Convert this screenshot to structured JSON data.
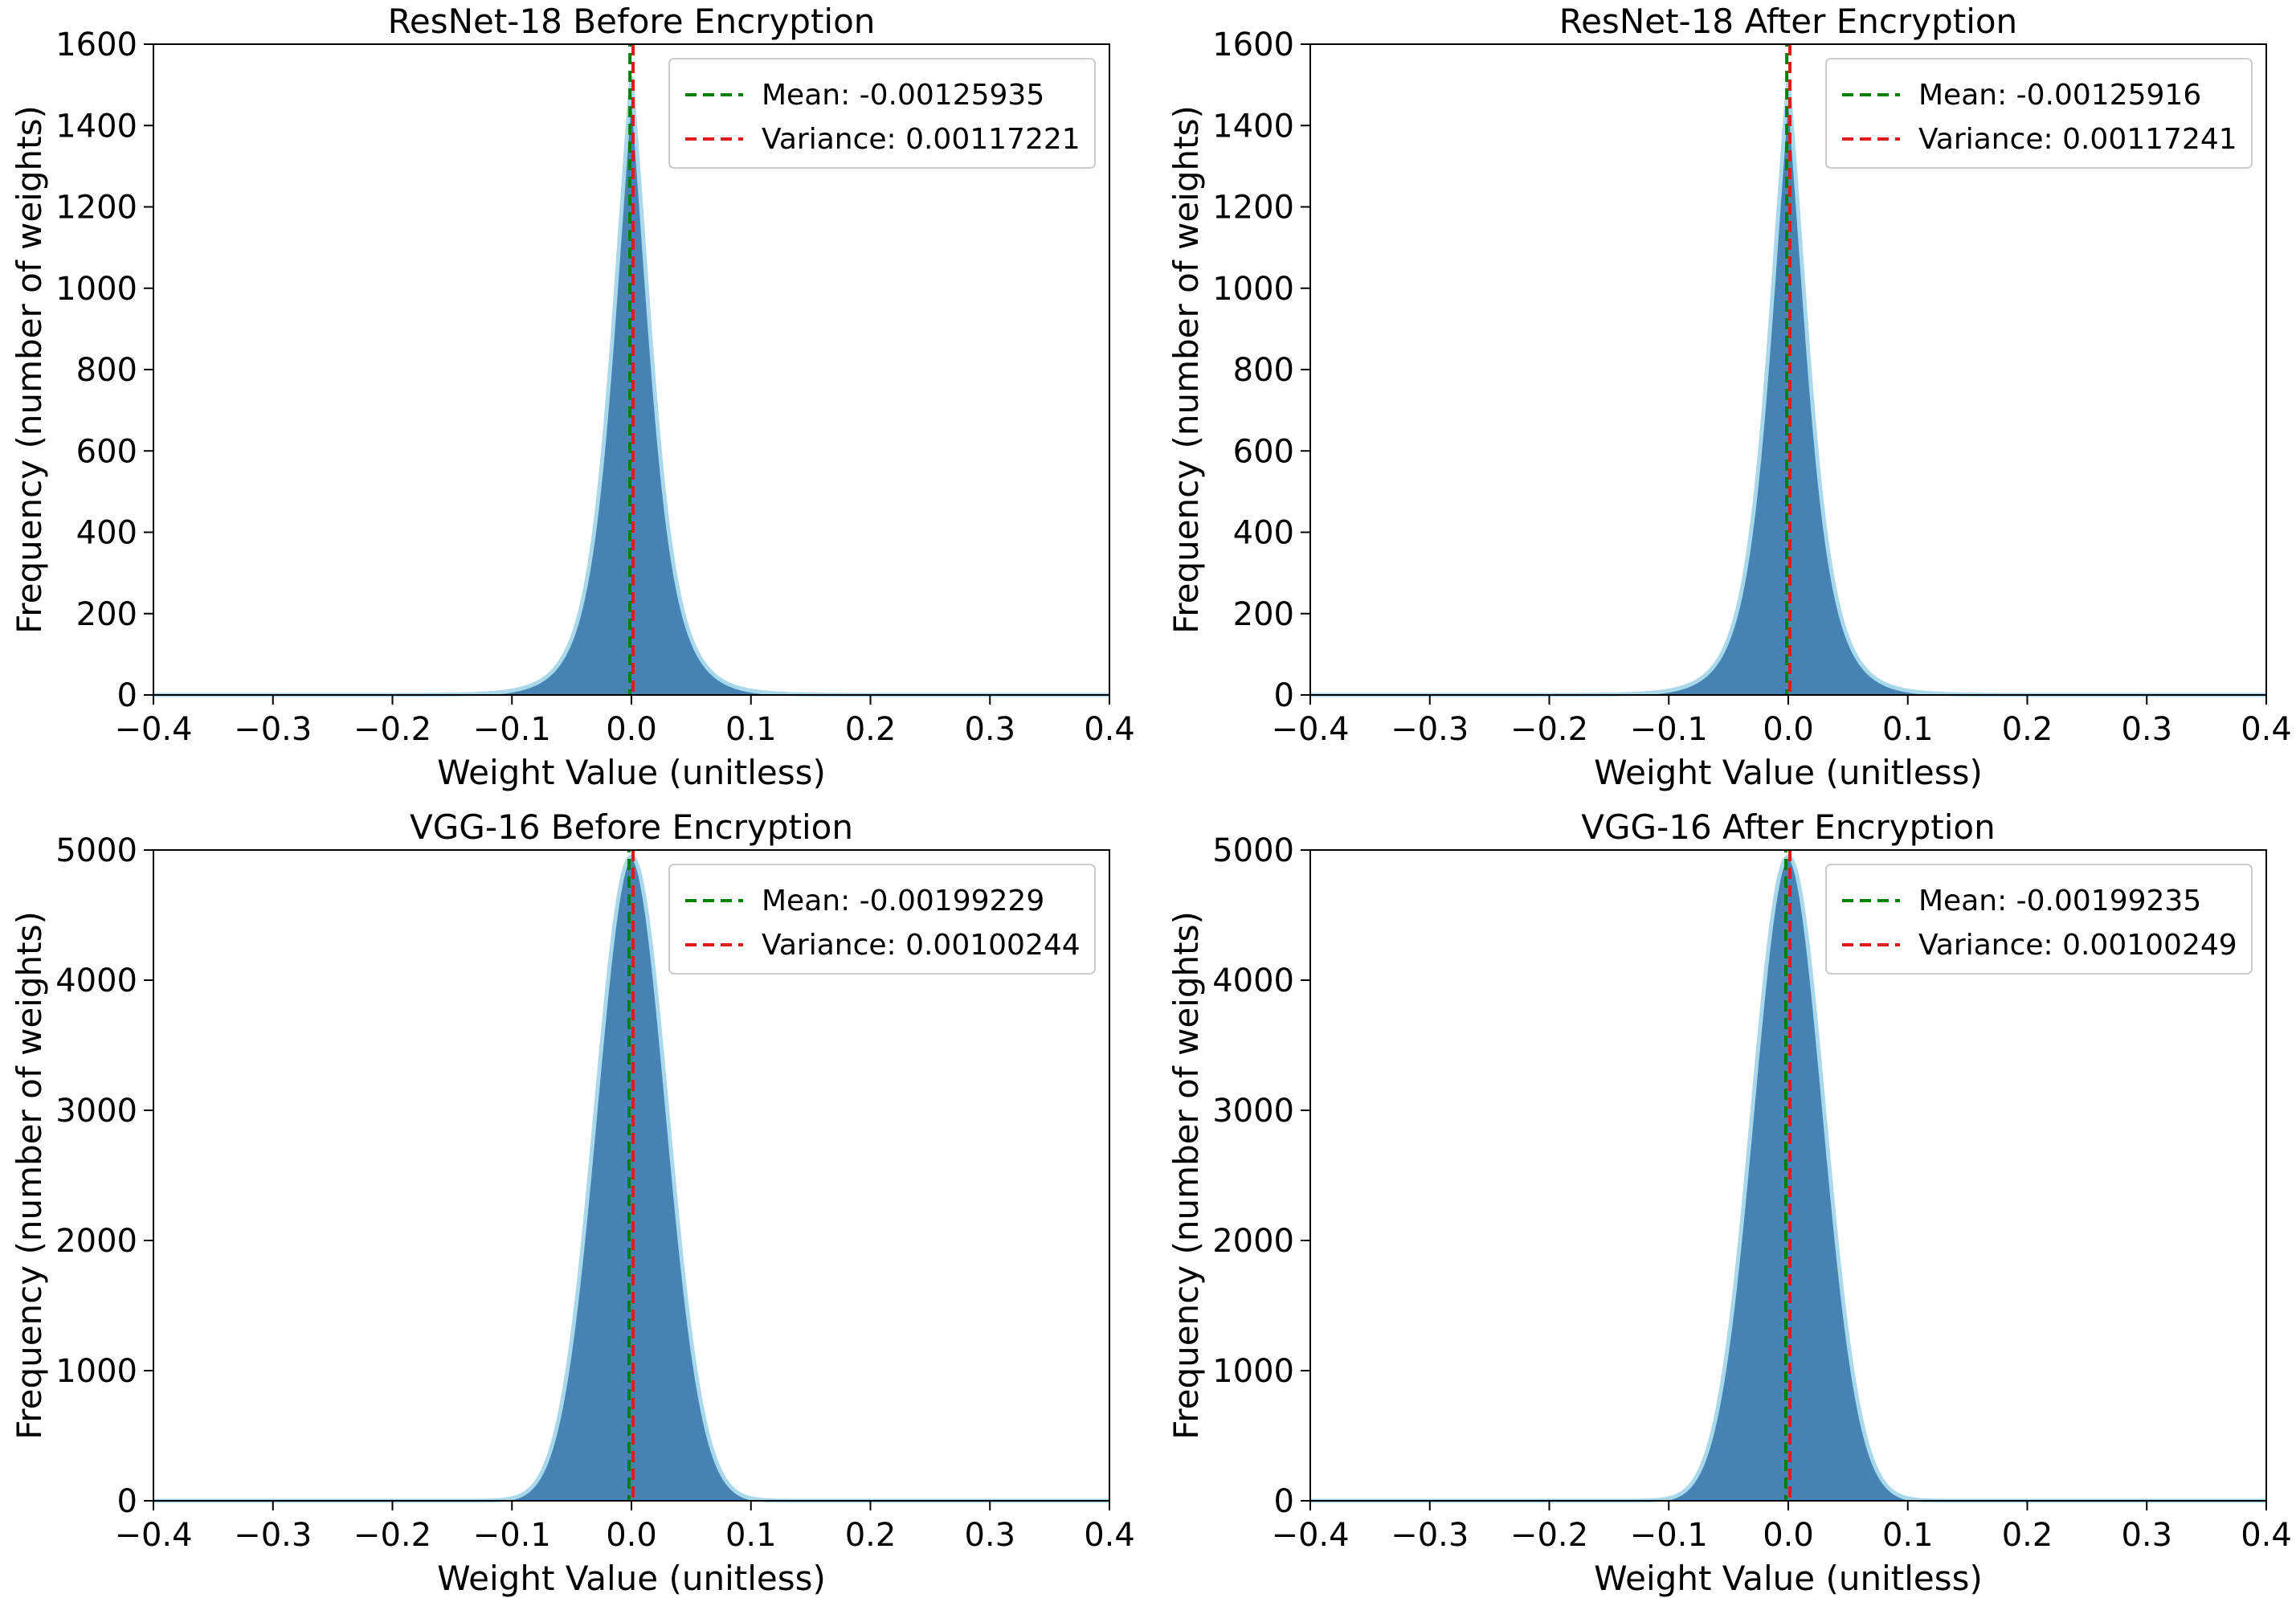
{
  "figure_title": "",
  "chart_data": [
    {
      "type": "histogram",
      "title": "ResNet-18 Before Encryption",
      "xlabel": "Weight Value (unitless)",
      "ylabel": "Frequency (number of weights)",
      "xlim": [
        -0.4,
        0.4
      ],
      "ylim": [
        0,
        1600
      ],
      "xticks": [
        -0.4,
        -0.3,
        -0.2,
        -0.1,
        0.0,
        0.1,
        0.2,
        0.3,
        0.4
      ],
      "xtick_labels": [
        "−0.4",
        "−0.3",
        "−0.2",
        "−0.1",
        "0.0",
        "0.1",
        "0.2",
        "0.3",
        "0.4"
      ],
      "yticks": [
        0,
        200,
        400,
        600,
        800,
        1000,
        1200,
        1400,
        1600
      ],
      "ytick_labels": [
        "0",
        "200",
        "400",
        "600",
        "800",
        "1000",
        "1200",
        "1400",
        "1600"
      ],
      "distribution": {
        "shape": "laplace-like",
        "center": 0.0,
        "peak": 1520,
        "scale": 0.0225
      },
      "mean_line": {
        "label": "Mean: -0.00125935",
        "x": -0.00125935,
        "color": "#008000"
      },
      "variance_line": {
        "label": "Variance: 0.00117221",
        "x": 0.0,
        "color": "#e31a1c"
      },
      "legend_position": "top-right"
    },
    {
      "type": "histogram",
      "title": "ResNet-18 After Encryption",
      "xlabel": "Weight Value (unitless)",
      "ylabel": "Frequency (number of weights)",
      "xlim": [
        -0.4,
        0.4
      ],
      "ylim": [
        0,
        1600
      ],
      "xticks": [
        -0.4,
        -0.3,
        -0.2,
        -0.1,
        0.0,
        0.1,
        0.2,
        0.3,
        0.4
      ],
      "xtick_labels": [
        "−0.4",
        "−0.3",
        "−0.2",
        "−0.1",
        "0.0",
        "0.1",
        "0.2",
        "0.3",
        "0.4"
      ],
      "yticks": [
        0,
        200,
        400,
        600,
        800,
        1000,
        1200,
        1400,
        1600
      ],
      "ytick_labels": [
        "0",
        "200",
        "400",
        "600",
        "800",
        "1000",
        "1200",
        "1400",
        "1600"
      ],
      "distribution": {
        "shape": "laplace-like",
        "center": 0.0,
        "peak": 1515,
        "scale": 0.0225
      },
      "mean_line": {
        "label": "Mean: -0.00125916",
        "x": -0.00125916,
        "color": "#008000"
      },
      "variance_line": {
        "label": "Variance: 0.00117241",
        "x": 0.0,
        "color": "#e31a1c"
      },
      "legend_position": "top-right"
    },
    {
      "type": "histogram",
      "title": "VGG-16 Before Encryption",
      "xlabel": "Weight Value (unitless)",
      "ylabel": "Frequency (number of weights)",
      "xlim": [
        -0.4,
        0.4
      ],
      "ylim": [
        0,
        5000
      ],
      "xticks": [
        -0.4,
        -0.3,
        -0.2,
        -0.1,
        0.0,
        0.1,
        0.2,
        0.3,
        0.4
      ],
      "xtick_labels": [
        "−0.4",
        "−0.3",
        "−0.2",
        "−0.1",
        "0.0",
        "0.1",
        "0.2",
        "0.3",
        "0.4"
      ],
      "yticks": [
        0,
        1000,
        2000,
        3000,
        4000,
        5000
      ],
      "ytick_labels": [
        "0",
        "1000",
        "2000",
        "3000",
        "4000",
        "5000"
      ],
      "distribution": {
        "shape": "gaussian",
        "center": 0.0,
        "peak": 4950,
        "scale": 0.03
      },
      "mean_line": {
        "label": "Mean: -0.00199229",
        "x": -0.00199229,
        "color": "#008000"
      },
      "variance_line": {
        "label": "Variance: 0.00100244",
        "x": 0.0,
        "color": "#e31a1c"
      },
      "legend_position": "top-right"
    },
    {
      "type": "histogram",
      "title": "VGG-16 After Encryption",
      "xlabel": "Weight Value (unitless)",
      "ylabel": "Frequency (number of weights)",
      "xlim": [
        -0.4,
        0.4
      ],
      "ylim": [
        0,
        5000
      ],
      "xticks": [
        -0.4,
        -0.3,
        -0.2,
        -0.1,
        0.0,
        0.1,
        0.2,
        0.3,
        0.4
      ],
      "xtick_labels": [
        "−0.4",
        "−0.3",
        "−0.2",
        "−0.1",
        "0.0",
        "0.1",
        "0.2",
        "0.3",
        "0.4"
      ],
      "yticks": [
        0,
        1000,
        2000,
        3000,
        4000,
        5000
      ],
      "ytick_labels": [
        "0",
        "1000",
        "2000",
        "3000",
        "4000",
        "5000"
      ],
      "distribution": {
        "shape": "gaussian",
        "center": 0.0,
        "peak": 4950,
        "scale": 0.03
      },
      "mean_line": {
        "label": "Mean: -0.00199235",
        "x": -0.00199235,
        "color": "#008000"
      },
      "variance_line": {
        "label": "Variance: 0.00100249",
        "x": 0.0,
        "color": "#e31a1c"
      },
      "legend_position": "top-right"
    }
  ],
  "colors": {
    "bar_fill": "#4682b4",
    "kde_line": "#a8d8ea",
    "axis": "#000000",
    "legend_border": "#cccccc",
    "background": "#ffffff"
  }
}
